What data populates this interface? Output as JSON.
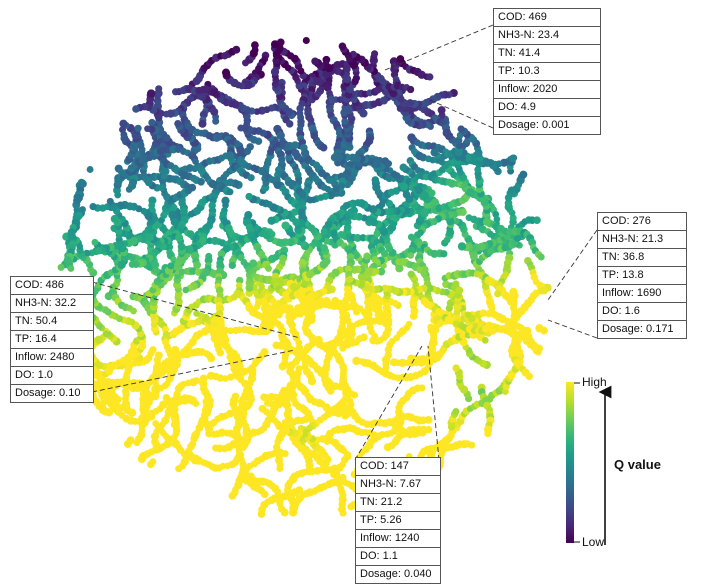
{
  "chart_data": {
    "type": "scatter",
    "description_kind": "t-SNE style 2D embedding scatter colored by Q value",
    "colorbar": {
      "high_label": "High",
      "low_label": "Low",
      "title": "Q value",
      "colormap": "viridis",
      "colors": [
        "#440154",
        "#482878",
        "#3e4989",
        "#31688e",
        "#26828e",
        "#1f9e89",
        "#35b779",
        "#6ece58",
        "#b5de2b",
        "#fde725"
      ]
    },
    "callouts": [
      {
        "id": "top",
        "rows": [
          "COD: 469",
          "NH3-N: 23.4",
          "TN: 41.4",
          "TP: 10.3",
          "Inflow: 2020",
          "DO: 4.9",
          "Dosage: 0.001"
        ],
        "values": {
          "COD": 469,
          "NH3-N": 23.4,
          "TN": 41.4,
          "TP": 10.3,
          "Inflow": 2020,
          "DO": 4.9,
          "Dosage": 0.001
        }
      },
      {
        "id": "right",
        "rows": [
          "COD: 276",
          "NH3-N: 21.3",
          "TN: 36.8",
          "TP: 13.8",
          "Inflow: 1690",
          "DO: 1.6",
          "Dosage: 0.171"
        ],
        "values": {
          "COD": 276,
          "NH3-N": 21.3,
          "TN": 36.8,
          "TP": 13.8,
          "Inflow": 1690,
          "DO": 1.6,
          "Dosage": 0.171
        }
      },
      {
        "id": "left",
        "rows": [
          "COD: 486",
          "NH3-N: 32.2",
          "TN: 50.4",
          "TP: 16.4",
          "Inflow: 2480",
          "DO: 1.0",
          "Dosage: 0.10"
        ],
        "values": {
          "COD": 486,
          "NH3-N": 32.2,
          "TN": 50.4,
          "TP": 16.4,
          "Inflow": 2480,
          "DO": 1.0,
          "Dosage": 0.1
        }
      },
      {
        "id": "bottom",
        "rows": [
          "COD: 147",
          "NH3-N: 7.67",
          "TN: 21.2",
          "TP: 5.26",
          "Inflow: 1240",
          "DO: 1.1",
          "Dosage: 0.040"
        ],
        "values": {
          "COD": 147,
          "NH3-N": 7.67,
          "TN": 21.2,
          "TP": 5.26,
          "Inflow": 1240,
          "DO": 1.1,
          "Dosage": 0.04
        }
      }
    ],
    "grid": false,
    "legend_placement": "right"
  }
}
